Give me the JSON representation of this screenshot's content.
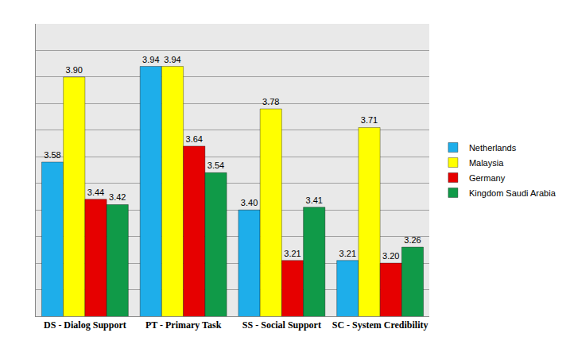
{
  "chart_data": {
    "type": "bar",
    "categories": [
      "DS - Dialog Support",
      "PT - Primary Task",
      "SS - Social Support",
      "SC - System Credibility"
    ],
    "series": [
      {
        "name": "Netherlands",
        "color": "#1eaeea",
        "values": [
          3.58,
          3.94,
          3.4,
          3.21
        ],
        "value_labels": [
          "3.58",
          "3.94",
          "3.40",
          "3.21"
        ]
      },
      {
        "name": "Malaysia",
        "color": "#ffff00",
        "values": [
          3.9,
          3.94,
          3.78,
          3.71
        ],
        "value_labels": [
          "3.90",
          "3.94",
          "3.78",
          "3.71"
        ]
      },
      {
        "name": "Germany",
        "color": "#e60000",
        "values": [
          3.44,
          3.64,
          3.21,
          3.2
        ],
        "value_labels": [
          "3.44",
          "3.64",
          "3.21",
          "3.20"
        ]
      },
      {
        "name": "Kingdom Saudi Arabia",
        "color": "#109a48",
        "values": [
          3.42,
          3.54,
          3.41,
          3.26
        ],
        "value_labels": [
          "3.42",
          "3.54",
          "3.41",
          "3.26"
        ]
      }
    ],
    "ylim": [
      3.0,
      4.1
    ],
    "yticks": [
      3.0,
      3.1,
      3.2,
      3.3,
      3.4,
      3.5,
      3.6,
      3.7,
      3.8,
      3.9,
      4.0,
      4.1
    ],
    "grid": true,
    "data_labels": true,
    "tick_labels": "x",
    "legend": "right"
  }
}
